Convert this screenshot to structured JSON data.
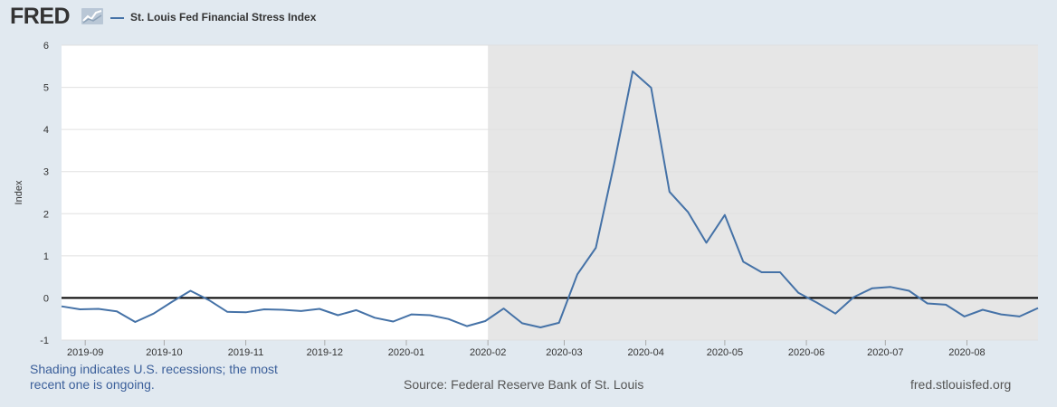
{
  "header": {
    "logo_text": "FRED",
    "logo_icon": "chart-line-icon",
    "legend_label": "St. Louis Fed Financial Stress Index",
    "series_color": "#4572a7"
  },
  "footer": {
    "recession_note": "Shading indicates U.S. recessions; the most recent one is ongoing.",
    "source": "Source: Federal Reserve Bank of St. Louis",
    "site": "fred.stlouisfed.org"
  },
  "chart_data": {
    "type": "line",
    "title": "",
    "xlabel": "",
    "ylabel": "Index",
    "ylim": [
      -1,
      6
    ],
    "yticks": [
      -1,
      0,
      1,
      2,
      3,
      4,
      5,
      6
    ],
    "xtick_labels": [
      "2019-09",
      "2019-10",
      "2019-11",
      "2019-12",
      "2020-01",
      "2020-02",
      "2020-03",
      "2020-04",
      "2020-05",
      "2020-06",
      "2020-07",
      "2020-08"
    ],
    "xtick_dates": [
      "2019-09-01",
      "2019-10-01",
      "2019-11-01",
      "2019-12-01",
      "2020-01-01",
      "2020-02-01",
      "2020-03-01",
      "2020-04-01",
      "2020-05-01",
      "2020-06-01",
      "2020-07-01",
      "2020-08-01"
    ],
    "xlim": [
      "2019-08-23",
      "2020-08-28"
    ],
    "recession_start": "2020-02-01",
    "recession_color": "#e6e6e6",
    "zero_line": true,
    "grid": true,
    "series": [
      {
        "name": "St. Louis Fed Financial Stress Index",
        "color": "#4572a7",
        "x": [
          "2019-08-23",
          "2019-08-30",
          "2019-09-06",
          "2019-09-13",
          "2019-09-20",
          "2019-09-27",
          "2019-10-04",
          "2019-10-11",
          "2019-10-18",
          "2019-10-25",
          "2019-11-01",
          "2019-11-08",
          "2019-11-15",
          "2019-11-22",
          "2019-11-29",
          "2019-12-06",
          "2019-12-13",
          "2019-12-20",
          "2019-12-27",
          "2020-01-03",
          "2020-01-10",
          "2020-01-17",
          "2020-01-24",
          "2020-01-31",
          "2020-02-07",
          "2020-02-14",
          "2020-02-21",
          "2020-02-28",
          "2020-03-06",
          "2020-03-13",
          "2020-03-20",
          "2020-03-27",
          "2020-04-03",
          "2020-04-10",
          "2020-04-17",
          "2020-04-24",
          "2020-05-01",
          "2020-05-08",
          "2020-05-15",
          "2020-05-22",
          "2020-05-29",
          "2020-06-05",
          "2020-06-12",
          "2020-06-19",
          "2020-06-26",
          "2020-07-03",
          "2020-07-10",
          "2020-07-17",
          "2020-07-24",
          "2020-07-31",
          "2020-08-07",
          "2020-08-14",
          "2020-08-21",
          "2020-08-28"
        ],
        "values": [
          -0.2,
          -0.27,
          -0.26,
          -0.32,
          -0.57,
          -0.37,
          -0.09,
          0.17,
          -0.05,
          -0.33,
          -0.34,
          -0.27,
          -0.28,
          -0.31,
          -0.26,
          -0.41,
          -0.29,
          -0.47,
          -0.56,
          -0.39,
          -0.41,
          -0.5,
          -0.67,
          -0.55,
          -0.25,
          -0.6,
          -0.7,
          -0.59,
          0.56,
          1.19,
          3.2,
          5.38,
          4.99,
          2.52,
          2.04,
          1.31,
          1.97,
          0.86,
          0.61,
          0.61,
          0.12,
          -0.11,
          -0.37,
          0.02,
          0.23,
          0.26,
          0.17,
          -0.13,
          -0.16,
          -0.44,
          -0.28,
          -0.39,
          -0.44,
          -0.24
        ]
      }
    ]
  }
}
